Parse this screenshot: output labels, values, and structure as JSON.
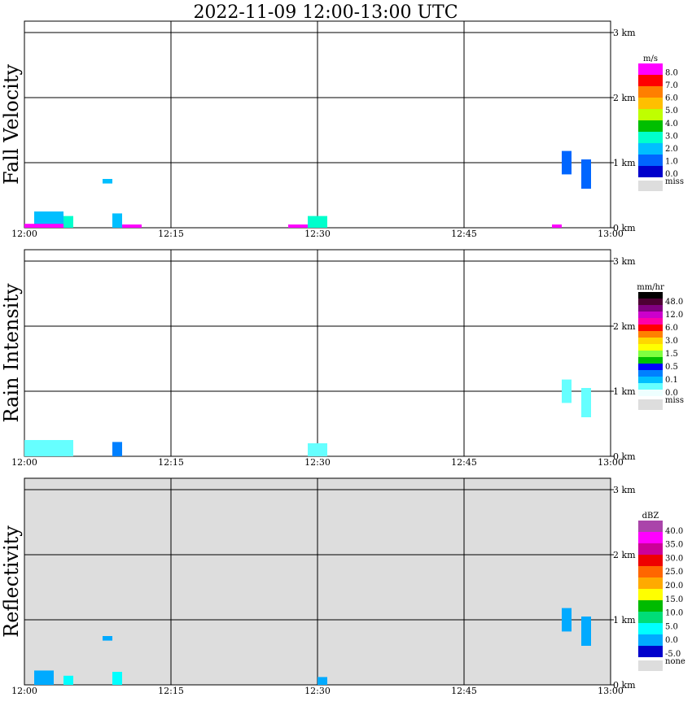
{
  "title": "2022-11-09   12:00-13:00 UTC",
  "x_ticks": [
    "12:00",
    "12:15",
    "12:30",
    "12:45",
    "13:00"
  ],
  "y_ticks": [
    "0 km",
    "1 km",
    "2 km",
    "3 km"
  ],
  "colors": {
    "missing": "#dddddd",
    "grid": "#000000"
  },
  "panels": [
    {
      "name": "Fall Velocity",
      "unit": "m/s",
      "background": "#ffffff",
      "colorbar": {
        "colors": [
          "#ff00ff",
          "#ff0000",
          "#ff7f00",
          "#ffbf00",
          "#bfff00",
          "#00bf00",
          "#00ffcc",
          "#00bfff",
          "#0066ff",
          "#0000cc"
        ],
        "labels": [
          "8.0",
          "7.0",
          "6.0",
          "5.0",
          "4.0",
          "3.0",
          "2.0",
          "1.0",
          "0.0"
        ],
        "missing_label": "miss"
      }
    },
    {
      "name": "Rain Intensity",
      "unit": "mm/hr",
      "background": "#ffffff",
      "colorbar": {
        "colors": [
          "#000000",
          "#4d0033",
          "#800080",
          "#cc00cc",
          "#ff00aa",
          "#ff0000",
          "#ff8000",
          "#ffd700",
          "#ffff00",
          "#80ff40",
          "#00c000",
          "#0000ff",
          "#0080ff",
          "#00bfff",
          "#66ffff",
          "#eeffff"
        ],
        "labels": [
          "48.0",
          "12.0",
          "6.0",
          "3.0",
          "1.5",
          "0.5",
          "0.1",
          "0.0"
        ],
        "missing_label": "miss"
      }
    },
    {
      "name": "Reflectivity",
      "unit": "dBZ",
      "background": "#dddddd",
      "colorbar": {
        "colors": [
          "#aa44aa",
          "#ff00ff",
          "#cc0099",
          "#ee0000",
          "#ff6600",
          "#ffaa00",
          "#ffff00",
          "#00bb00",
          "#00dd77",
          "#00ffff",
          "#00aaff",
          "#0000cc"
        ],
        "labels": [
          "40.0",
          "35.0",
          "30.0",
          "25.0",
          "20.0",
          "15.0",
          "10.0",
          "5.0",
          "0.0",
          "-5.0"
        ],
        "missing_label": "none"
      }
    }
  ],
  "chart_data": [
    {
      "type": "heatmap",
      "title": "Fall Velocity",
      "unit": "m/s",
      "x_range": [
        "12:00",
        "13:00"
      ],
      "y_range_km": [
        0,
        3.0
      ],
      "echoes": [
        {
          "t0": "12:01",
          "t1": "12:04",
          "h0": 0.0,
          "h1": 0.25,
          "value": 1.5
        },
        {
          "t0": "12:00",
          "t1": "12:04",
          "h0": 0.0,
          "h1": 0.06,
          "value": 8.0
        },
        {
          "t0": "12:04",
          "t1": "12:05",
          "h0": 0.0,
          "h1": 0.18,
          "value": 2.5
        },
        {
          "t0": "12:08",
          "t1": "12:09",
          "h0": 0.68,
          "h1": 0.75,
          "value": 1.0
        },
        {
          "t0": "12:09",
          "t1": "12:10",
          "h0": 0.0,
          "h1": 0.22,
          "value": 1.0
        },
        {
          "t0": "12:10",
          "t1": "12:12",
          "h0": 0.0,
          "h1": 0.05,
          "value": 8.0
        },
        {
          "t0": "12:29",
          "t1": "12:31",
          "h0": 0.0,
          "h1": 0.18,
          "value": 2.0
        },
        {
          "t0": "12:27",
          "t1": "12:29",
          "h0": 0.0,
          "h1": 0.05,
          "value": 8.0
        },
        {
          "t0": "12:54",
          "t1": "12:55",
          "h0": 0.0,
          "h1": 0.05,
          "value": 8.0
        },
        {
          "t0": "12:55",
          "t1": "12:56",
          "h0": 0.82,
          "h1": 1.18,
          "value": 0.5
        },
        {
          "t0": "12:57",
          "t1": "12:58",
          "h0": 0.6,
          "h1": 1.05,
          "value": 0.5
        }
      ]
    },
    {
      "type": "heatmap",
      "title": "Rain Intensity",
      "unit": "mm/hr",
      "x_range": [
        "12:00",
        "13:00"
      ],
      "y_range_km": [
        0,
        3.0
      ],
      "echoes": [
        {
          "t0": "12:00",
          "t1": "12:05",
          "h0": 0.0,
          "h1": 0.25,
          "value": 0.1
        },
        {
          "t0": "12:09",
          "t1": "12:10",
          "h0": 0.0,
          "h1": 0.22,
          "value": 0.3
        },
        {
          "t0": "12:29",
          "t1": "12:31",
          "h0": 0.0,
          "h1": 0.2,
          "value": 0.1
        },
        {
          "t0": "12:55",
          "t1": "12:56",
          "h0": 0.82,
          "h1": 1.18,
          "value": 0.1
        },
        {
          "t0": "12:57",
          "t1": "12:58",
          "h0": 0.6,
          "h1": 1.05,
          "value": 0.1
        }
      ]
    },
    {
      "type": "heatmap",
      "title": "Reflectivity",
      "unit": "dBZ",
      "x_range": [
        "12:00",
        "13:00"
      ],
      "y_range_km": [
        0,
        3.0
      ],
      "echoes": [
        {
          "t0": "12:01",
          "t1": "12:03",
          "h0": 0.0,
          "h1": 0.22,
          "value": -2.0
        },
        {
          "t0": "12:04",
          "t1": "12:05",
          "h0": 0.0,
          "h1": 0.14,
          "value": 0.0
        },
        {
          "t0": "12:08",
          "t1": "12:09",
          "h0": 0.68,
          "h1": 0.75,
          "value": -3.0
        },
        {
          "t0": "12:09",
          "t1": "12:10",
          "h0": 0.0,
          "h1": 0.2,
          "value": 3.0
        },
        {
          "t0": "12:30",
          "t1": "12:31",
          "h0": 0.0,
          "h1": 0.12,
          "value": -3.0
        },
        {
          "t0": "12:55",
          "t1": "12:56",
          "h0": 0.82,
          "h1": 1.18,
          "value": -3.0
        },
        {
          "t0": "12:57",
          "t1": "12:58",
          "h0": 0.6,
          "h1": 1.05,
          "value": -3.0
        }
      ]
    }
  ]
}
